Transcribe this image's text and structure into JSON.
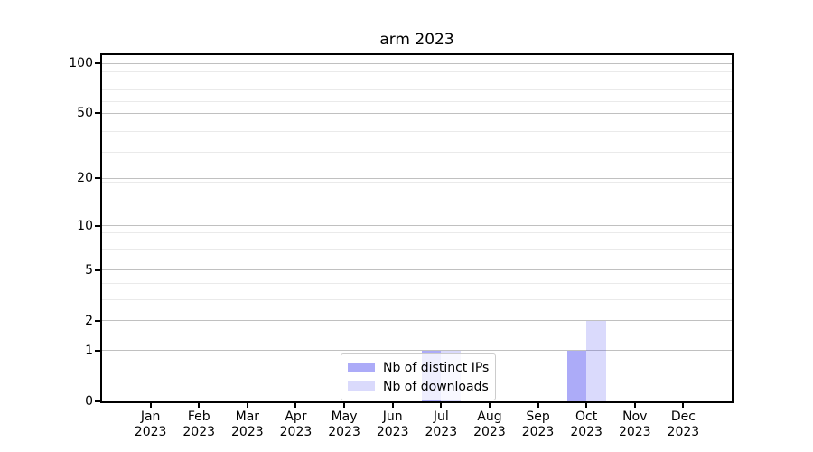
{
  "title": "arm 2023",
  "chart_data": {
    "type": "bar",
    "title": "arm 2023",
    "categories": [
      "Jan",
      "Feb",
      "Mar",
      "Apr",
      "May",
      "Jun",
      "Jul",
      "Aug",
      "Sep",
      "Oct",
      "Nov",
      "Dec"
    ],
    "category_year": "2023",
    "series": [
      {
        "name": "Nb of distinct IPs",
        "color": "rgba(70,68,240,0.45)",
        "values": [
          0,
          0,
          0,
          0,
          0,
          0,
          1,
          0,
          0,
          1,
          0,
          0
        ]
      },
      {
        "name": "Nb of downloads",
        "color": "rgba(70,68,240,0.20)",
        "values": [
          0,
          0,
          0,
          0,
          0,
          0,
          1,
          0,
          0,
          2,
          0,
          0
        ]
      }
    ],
    "yscale": "log1p",
    "ylim": [
      0,
      112
    ],
    "yticks_major": [
      0,
      1,
      2,
      5,
      10,
      20,
      50,
      100
    ],
    "yticks_minor": [
      3,
      4,
      6,
      7,
      8,
      9,
      19,
      29,
      39,
      59,
      69,
      79,
      89
    ],
    "grid": {
      "orientation": "horizontal",
      "major_color": "#c0c0c0",
      "minor_color": "#eaeaea"
    },
    "legend": {
      "position": "lower center"
    },
    "axis_color": "#000000"
  }
}
